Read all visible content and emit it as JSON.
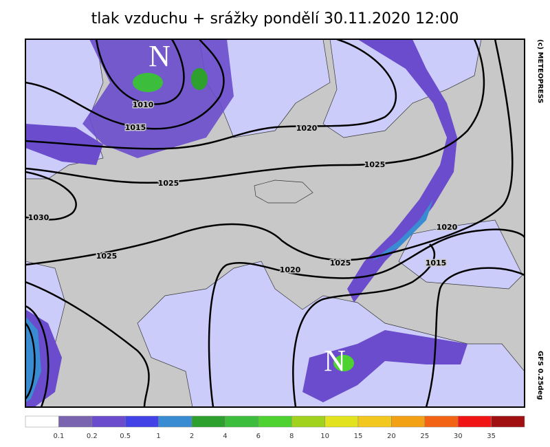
{
  "header": {
    "title": "tlak vzduchu + srážky pondělí 30.11.2020 12:00"
  },
  "map": {
    "pressure_labels": [
      "1010",
      "1015",
      "1020",
      "1025",
      "1025",
      "1030",
      "1025",
      "1020",
      "1025",
      "1020",
      "1015"
    ],
    "low_markers": [
      "N",
      "N"
    ],
    "credit": "(c) METEOPRESS",
    "model": "GFS 0.25deg"
  },
  "legend": {
    "colors": [
      "#ffffff",
      "#7a64b0",
      "#6a4ccc",
      "#4242e6",
      "#3a8cd2",
      "#2ea02e",
      "#3cbe3c",
      "#4ed232",
      "#a0d21e",
      "#e2e21e",
      "#f2c81e",
      "#f2a014",
      "#f26414",
      "#f01414",
      "#a01010"
    ],
    "labels": [
      "0.1",
      "0.2",
      "0.5",
      "1",
      "2",
      "4",
      "6",
      "8",
      "10",
      "15",
      "20",
      "25",
      "30",
      "35"
    ]
  }
}
